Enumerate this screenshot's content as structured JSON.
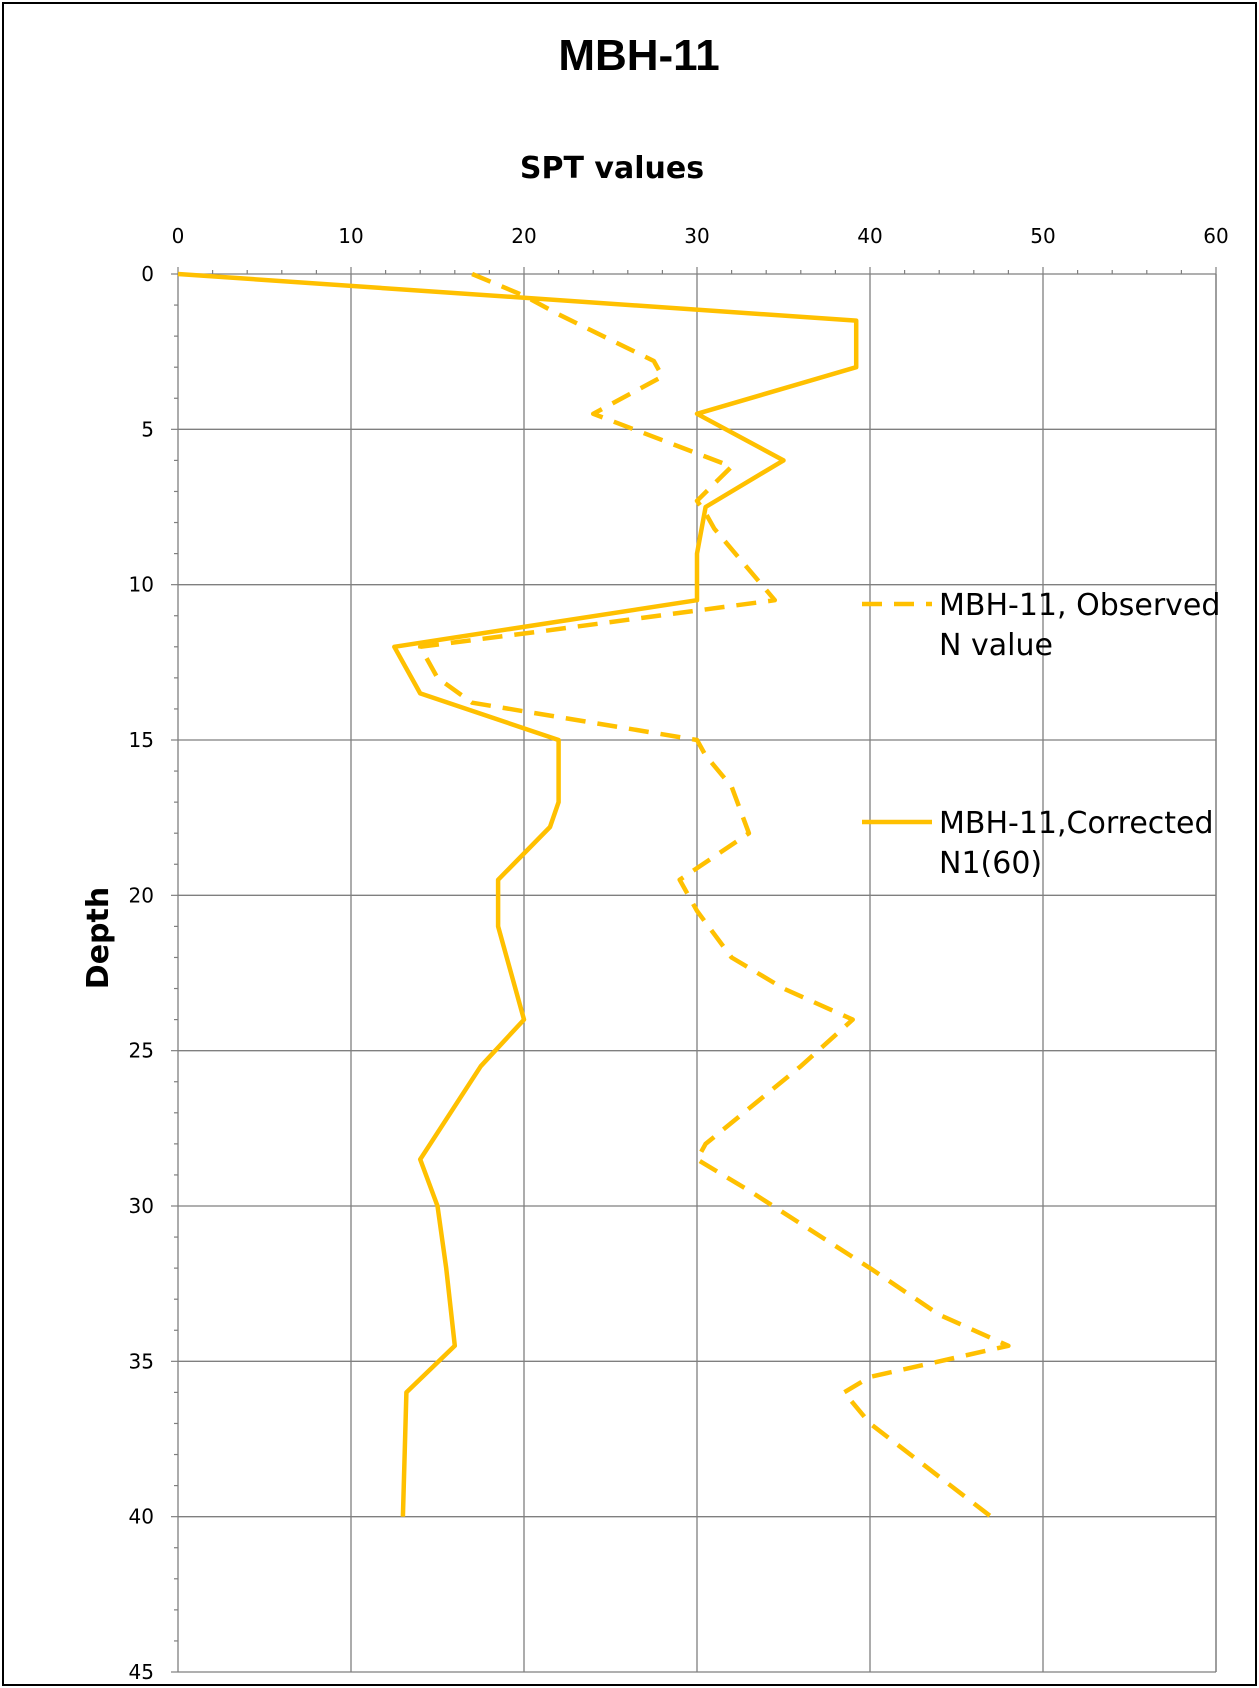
{
  "chart_data": {
    "type": "line",
    "title": "MBH-11",
    "xlabel": "SPT values",
    "ylabel": "Depth",
    "xlim": [
      0,
      60
    ],
    "ylim": [
      0,
      45
    ],
    "x_axis_position": "top",
    "y_axis_inverted": true,
    "x_ticks": [
      0,
      10,
      20,
      30,
      40,
      50,
      60
    ],
    "y_ticks": [
      0,
      5,
      10,
      15,
      20,
      25,
      30,
      35,
      40,
      45
    ],
    "grid": true,
    "legend_position": "right",
    "series": [
      {
        "name": "MBH-11, Observed N value",
        "name_lines": [
          "MBH-11, Observed",
          "N value"
        ],
        "style": "dashed",
        "color": "#FFC000",
        "points": [
          [
            17,
            0
          ],
          [
            20,
            0.7
          ],
          [
            22,
            1.3
          ],
          [
            27.5,
            2.8
          ],
          [
            28,
            3.3
          ],
          [
            24,
            4.5
          ],
          [
            32,
            6.2
          ],
          [
            30,
            7.3
          ],
          [
            30.5,
            7.7
          ],
          [
            31,
            8.2
          ],
          [
            34.5,
            10.5
          ],
          [
            21,
            11.5
          ],
          [
            14,
            12
          ],
          [
            15,
            13
          ],
          [
            17,
            13.8
          ],
          [
            30,
            15
          ],
          [
            30.5,
            15.5
          ],
          [
            32,
            16.5
          ],
          [
            33,
            18
          ],
          [
            29,
            19.5
          ],
          [
            30,
            20.5
          ],
          [
            32,
            22
          ],
          [
            35,
            23
          ],
          [
            39,
            24
          ],
          [
            36,
            25.5
          ],
          [
            30.5,
            28
          ],
          [
            30,
            28.5
          ],
          [
            33,
            29.5
          ],
          [
            40,
            32
          ],
          [
            44,
            33.5
          ],
          [
            48,
            34.5
          ],
          [
            40,
            35.5
          ],
          [
            38.5,
            36
          ],
          [
            40,
            37
          ],
          [
            47,
            40
          ]
        ]
      },
      {
        "name": "MBH-11,Corrected N1(60)",
        "name_lines": [
          "MBH-11,Corrected",
          "N1(60)"
        ],
        "style": "solid",
        "color": "#FFC000",
        "points": [
          [
            0,
            0
          ],
          [
            39.2,
            1.5
          ],
          [
            39.2,
            3
          ],
          [
            30,
            4.5
          ],
          [
            35,
            6
          ],
          [
            30.5,
            7.5
          ],
          [
            30,
            9
          ],
          [
            30,
            10.5
          ],
          [
            12.5,
            12
          ],
          [
            14,
            13.5
          ],
          [
            22,
            15
          ],
          [
            22,
            17
          ],
          [
            21.5,
            17.8
          ],
          [
            18.5,
            19.5
          ],
          [
            18.5,
            21
          ],
          [
            20,
            24
          ],
          [
            17.5,
            25.5
          ],
          [
            14,
            28.5
          ],
          [
            15,
            30
          ],
          [
            15.5,
            32
          ],
          [
            16,
            34.5
          ],
          [
            13.2,
            36
          ],
          [
            13,
            40
          ]
        ]
      }
    ]
  },
  "colors": {
    "series_line": "#FFC000",
    "grid": "#7f7f7f",
    "border": "#000000"
  }
}
